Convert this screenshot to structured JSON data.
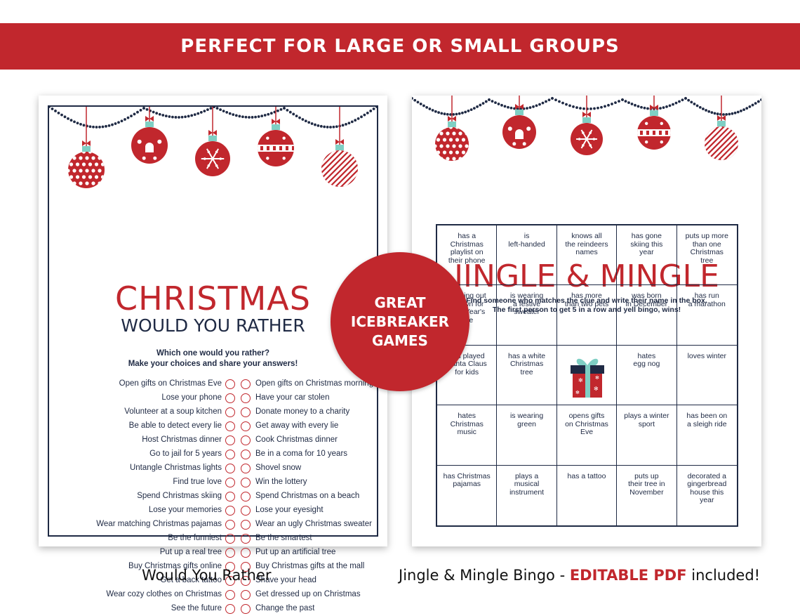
{
  "banner": {
    "text": "PERFECT FOR LARGE OR SMALL GROUPS"
  },
  "colors": {
    "red": "#c1272d",
    "navy": "#1f2a44",
    "mint": "#7fcfc4"
  },
  "wyr": {
    "title": "CHRISTMAS",
    "subtitle": "WOULD YOU RATHER",
    "instructions_1": "Which one would you rather?",
    "instructions_2": "Make your choices and share your answers!",
    "items": [
      {
        "left": "Open gifts on Christmas Eve",
        "right": "Open gifts on Christmas morning"
      },
      {
        "left": "Lose your phone",
        "right": "Have your car stolen"
      },
      {
        "left": "Volunteer at a soup kitchen",
        "right": "Donate money to a charity"
      },
      {
        "left": "Be able to detect every lie",
        "right": "Get away with every lie"
      },
      {
        "left": "Host Christmas dinner",
        "right": "Cook Christmas dinner"
      },
      {
        "left": "Go to jail for 5 years",
        "right": "Be in a coma for 10 years"
      },
      {
        "left": "Untangle Christmas lights",
        "right": "Shovel snow"
      },
      {
        "left": "Find true love",
        "right": "Win the lottery"
      },
      {
        "left": "Spend Christmas skiing",
        "right": "Spend Christmas on a beach"
      },
      {
        "left": "Lose your memories",
        "right": "Lose your eyesight"
      },
      {
        "left": "Wear matching Christmas pajamas",
        "right": "Wear an ugly Christmas sweater"
      },
      {
        "left": "Be the funniest",
        "right": "Be the smartest"
      },
      {
        "left": "Put up a real tree",
        "right": "Put up an artificial tree"
      },
      {
        "left": "Buy Christmas gifts online",
        "right": "Buy Christmas gifts at the mall"
      },
      {
        "left": "Get a back tattoo",
        "right": "Shave your head"
      },
      {
        "left": "Wear cozy clothes on Christmas",
        "right": "Get dressed up on Christmas"
      },
      {
        "left": "See the future",
        "right": "Change the past"
      }
    ]
  },
  "jm": {
    "title": "JINGLE & MINGLE",
    "instructions_1": "Find someone who matches the clue and write their name in the box.",
    "instructions_2": "The first person to get 5 in a row and yell bingo, wins!",
    "cells": [
      "has a\nChristmas\nplaylist on\ntheir phone",
      "is\nleft-handed",
      "knows all\nthe reindeers\nnames",
      "has gone\nskiing this\nyear",
      "puts up more\nthan one\nChristmas\ntree",
      "hanging out\nin town for\nNew Year's\nEve",
      "is wearing\na festive\nsweater",
      "has more\nthan two pets",
      "was born\nin December",
      "has run\na marathon",
      "has played\nSanta Claus\nfor kids",
      "has a white\nChristmas\ntree",
      "",
      "hates\negg nog",
      "loves winter",
      "hates\nChristmas\nmusic",
      "is wearing\ngreen",
      "opens gifts\non Christmas\nEve",
      "plays a winter\nsport",
      "has been on\na sleigh ride",
      "has Christmas\npajamas",
      "plays a\nmusical\ninstrument",
      "has a tattoo",
      "puts up\ntheir tree in\nNovember",
      "decorated a\ngingerbread\nhouse this\nyear"
    ]
  },
  "badge": {
    "line1": "GREAT",
    "line2": "ICEBREAKER",
    "line3": "GAMES"
  },
  "captions": {
    "left": "Would You Rather",
    "right_prefix": "Jingle & Mingle Bingo - ",
    "right_strong": "EDITABLE PDF",
    "right_suffix": " included!"
  }
}
